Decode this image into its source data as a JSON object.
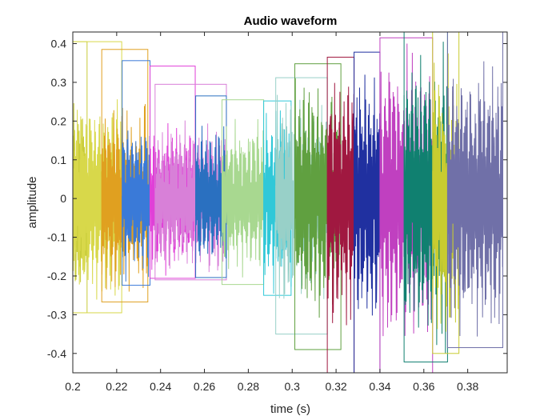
{
  "chart_data": {
    "type": "line",
    "title": "Audio waveform",
    "xlabel": "time (s)",
    "ylabel": "amplitude",
    "xlim": [
      0.2,
      0.398
    ],
    "ylim": [
      -0.45,
      0.43
    ],
    "x_ticks": [
      0.2,
      0.22,
      0.24,
      0.26,
      0.28,
      0.3,
      0.32,
      0.34,
      0.36,
      0.38
    ],
    "x_tick_labels": [
      "0.2",
      "0.22",
      "0.24",
      "0.26",
      "0.28",
      "0.3",
      "0.32",
      "0.34",
      "0.36",
      "0.38"
    ],
    "y_ticks": [
      0.4,
      0.3,
      0.2,
      0.1,
      0,
      -0.1,
      -0.2,
      -0.3,
      -0.4
    ],
    "y_tick_labels": [
      "0.4",
      "0.3",
      "0.2",
      "0.1",
      "0",
      "-0.1",
      "-0.2",
      "-0.3",
      "-0.4"
    ],
    "grid": false,
    "segments": [
      {
        "t0": 0.2,
        "t1": 0.2065,
        "ymax": 0.405,
        "ymin": -0.295,
        "color": "#c8cc3a"
      },
      {
        "t0": 0.2,
        "t1": 0.2223,
        "ymax": 0.405,
        "ymin": -0.295,
        "color": "#d8d84a"
      },
      {
        "t0": 0.2132,
        "t1": 0.2342,
        "ymax": 0.385,
        "ymin": -0.267,
        "color": "#e0a020"
      },
      {
        "t0": 0.2225,
        "t1": 0.2352,
        "ymax": 0.356,
        "ymin": -0.224,
        "color": "#3a7ad8"
      },
      {
        "t0": 0.2352,
        "t1": 0.2558,
        "ymax": 0.342,
        "ymin": -0.206,
        "color": "#e040d8"
      },
      {
        "t0": 0.2375,
        "t1": 0.27,
        "ymax": 0.295,
        "ymin": -0.21,
        "color": "#d880d8"
      },
      {
        "t0": 0.256,
        "t1": 0.27,
        "ymax": 0.265,
        "ymin": -0.204,
        "color": "#2a70c0"
      },
      {
        "t0": 0.268,
        "t1": 0.287,
        "ymax": 0.255,
        "ymin": -0.222,
        "color": "#a8d890"
      },
      {
        "t0": 0.287,
        "t1": 0.2995,
        "ymax": 0.252,
        "ymin": -0.25,
        "color": "#30c8d8"
      },
      {
        "t0": 0.2925,
        "t1": 0.316,
        "ymax": 0.312,
        "ymin": -0.35,
        "color": "#98d0c8"
      },
      {
        "t0": 0.3012,
        "t1": 0.3222,
        "ymax": 0.348,
        "ymin": -0.39,
        "color": "#60a040"
      },
      {
        "t0": 0.316,
        "t1": 0.3282,
        "ymax": 0.365,
        "ymin": -0.45,
        "color": "#a01840"
      },
      {
        "t0": 0.3282,
        "t1": 0.34,
        "ymax": 0.378,
        "ymin": -0.45,
        "color": "#2030a0"
      },
      {
        "t0": 0.34,
        "t1": 0.364,
        "ymax": 0.415,
        "ymin": -0.45,
        "color": "#c040c0"
      },
      {
        "t0": 0.351,
        "t1": 0.3708,
        "ymax": 0.43,
        "ymin": -0.422,
        "color": "#108070"
      },
      {
        "t0": 0.364,
        "t1": 0.376,
        "ymax": 0.43,
        "ymin": -0.4,
        "color": "#c8cc30"
      },
      {
        "t0": 0.3708,
        "t1": 0.396,
        "ymax": 0.43,
        "ymin": -0.385,
        "color": "#7070a8"
      }
    ]
  }
}
